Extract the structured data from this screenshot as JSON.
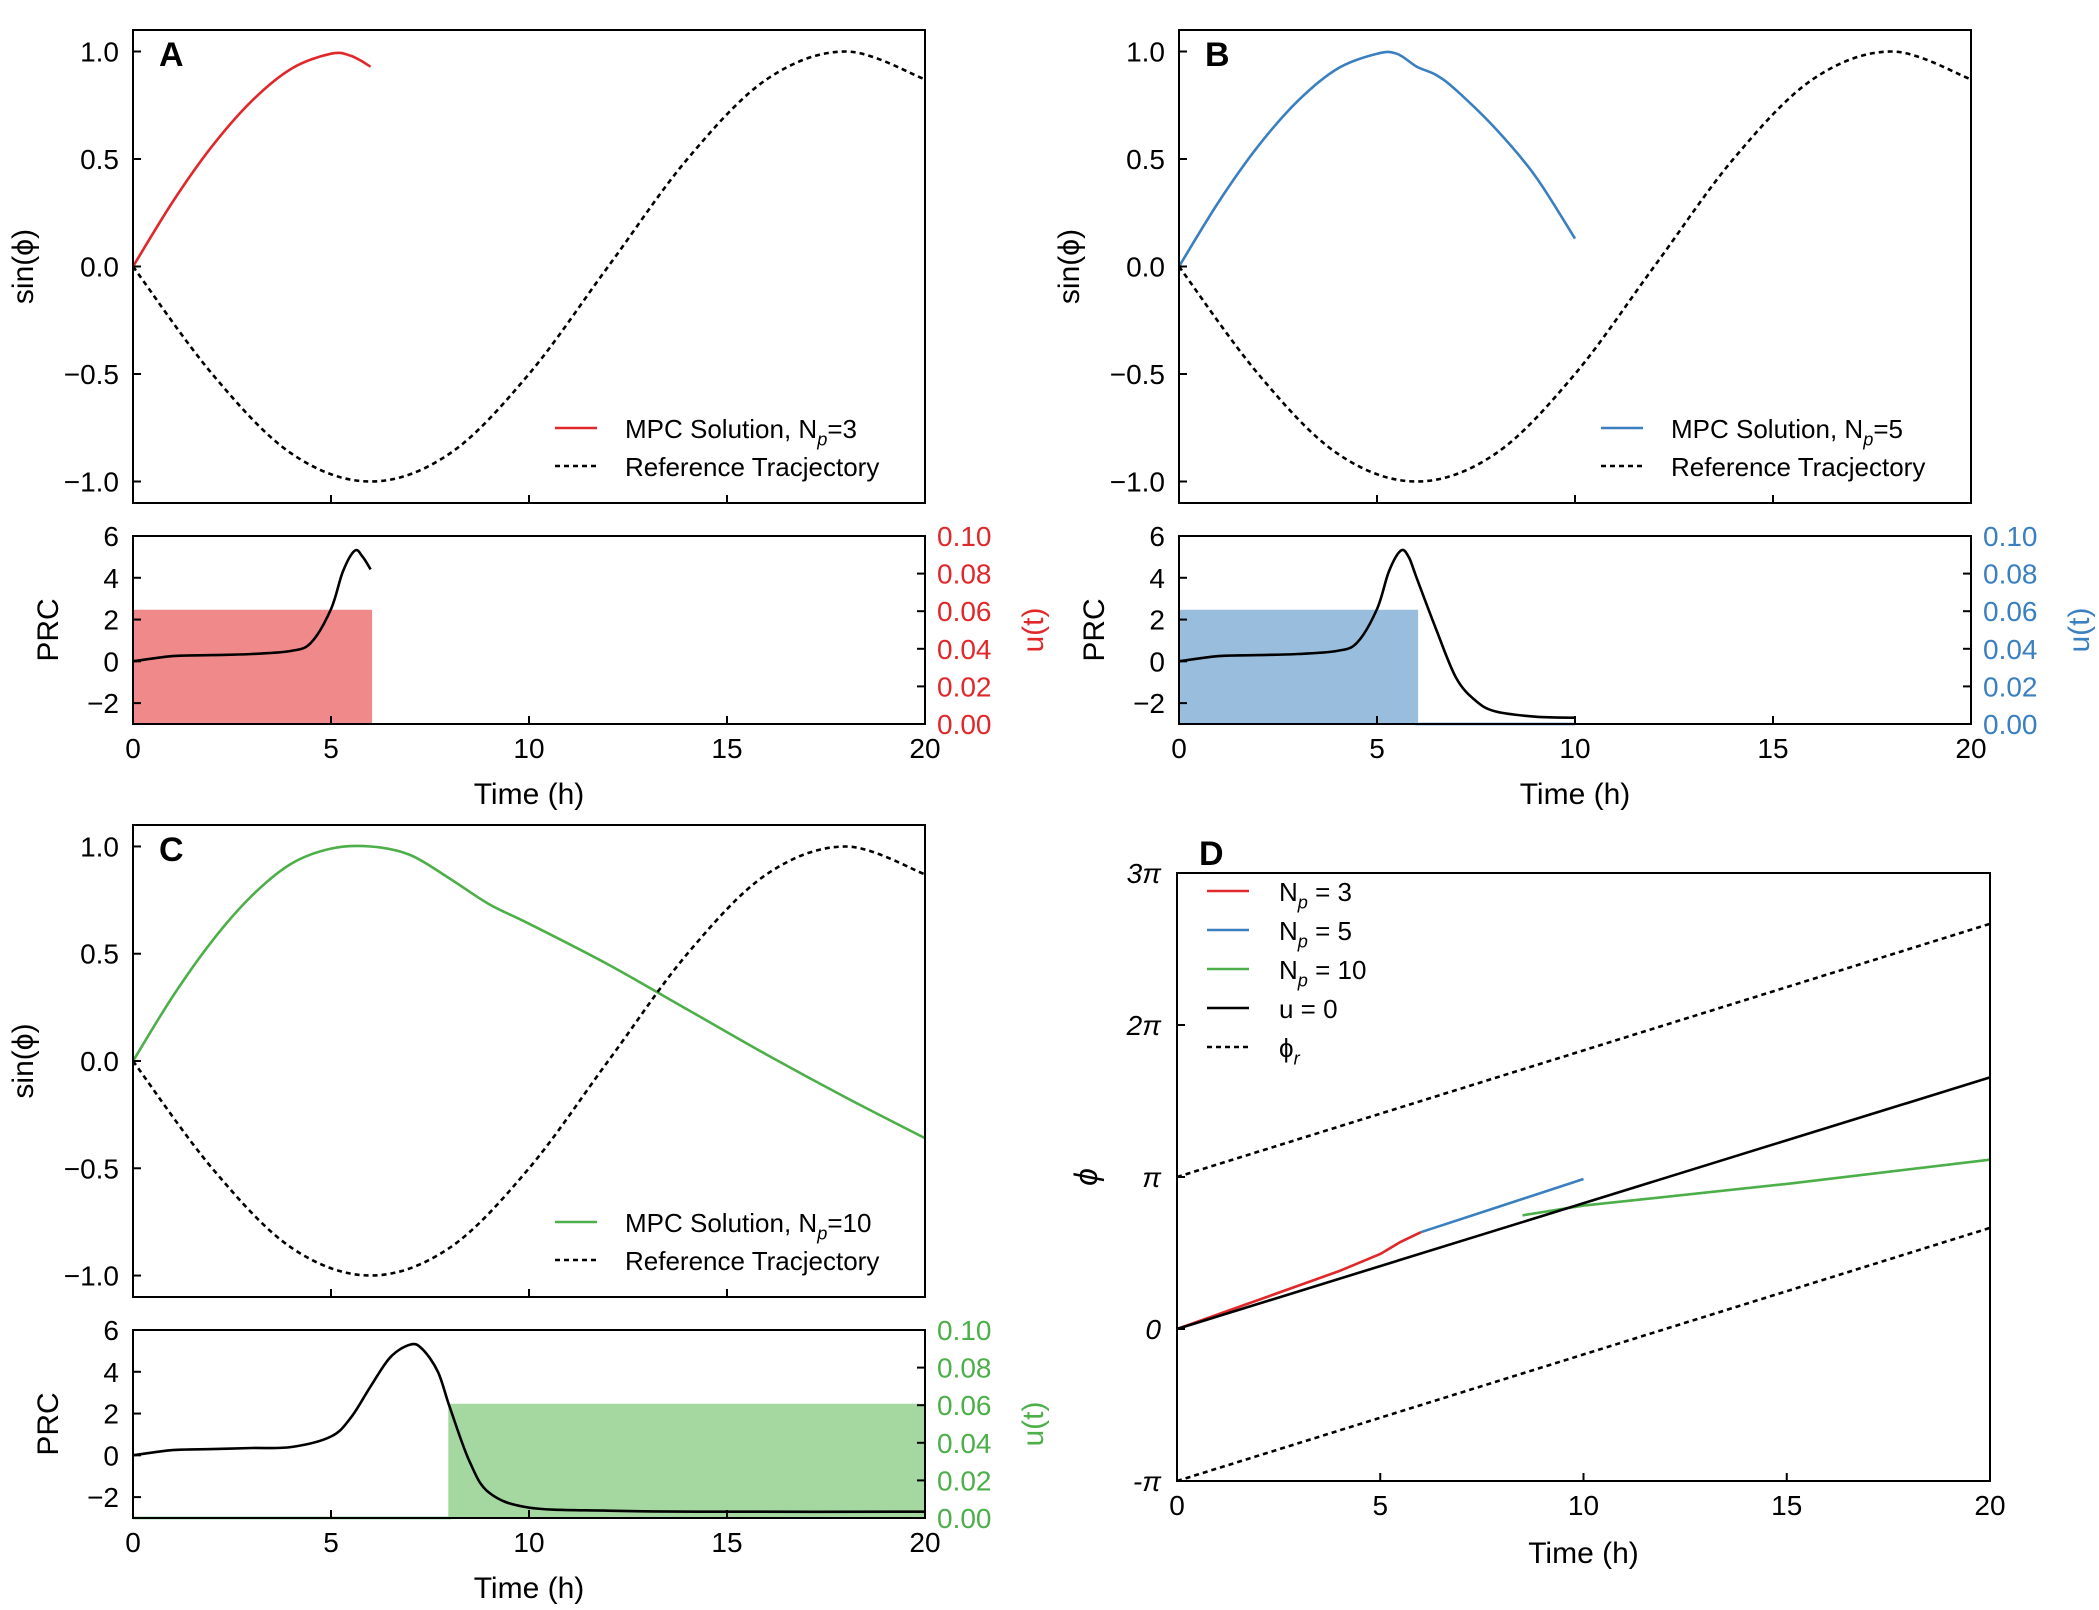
{
  "colors": {
    "red": "#e0282b",
    "blue": "#3a7fbf",
    "green": "#4daf4a",
    "black": "#000000",
    "red_fill": "#f08a8a",
    "blue_fill": "#99bedd",
    "green_fill": "#a5d7a0"
  },
  "chart_data": [
    {
      "panel": "A",
      "type": "line",
      "ylabel": "sin(ϕ)",
      "xlim": [
        0,
        20
      ],
      "ylim": [
        -1.1,
        1.1
      ],
      "xticks": [
        0,
        5,
        10,
        15,
        20
      ],
      "yticks": [
        1.0,
        0.5,
        0.0,
        -0.5,
        -1.0
      ],
      "ytick_labels": [
        "1.0",
        "0.5",
        "0.0",
        "−0.5",
        "−1.0"
      ],
      "legend_position": "lower-right",
      "series": [
        {
          "name": "MPC Solution, N_p=3",
          "color": "red",
          "dash": false,
          "x": [
            0,
            1,
            2,
            3,
            4,
            5,
            5.5,
            6
          ],
          "y": [
            0,
            0.3,
            0.56,
            0.77,
            0.92,
            0.99,
            0.98,
            0.93
          ]
        },
        {
          "name": "Reference Tracjectory",
          "color": "black",
          "dash": true,
          "x": [
            0,
            2,
            4,
            6,
            8,
            10,
            12,
            14,
            16,
            18,
            20
          ],
          "y": [
            0,
            -0.5,
            -0.87,
            -1.0,
            -0.87,
            -0.5,
            0,
            0.5,
            0.87,
            1.0,
            0.87
          ]
        }
      ]
    },
    {
      "panel": "A-lower",
      "type": "line",
      "xlabel": "Time (h)",
      "ylabel": "PRC",
      "ylabel_right": "u(t)",
      "right_color": "red",
      "xlim": [
        0,
        20
      ],
      "ylim": [
        -3,
        6
      ],
      "ylim_right": [
        0,
        0.1
      ],
      "xticks": [
        0,
        5,
        10,
        15,
        20
      ],
      "yticks": [
        6,
        4,
        2,
        0,
        -2
      ],
      "ytick_labels": [
        "6",
        "4",
        "2",
        "0",
        "−2"
      ],
      "yticks_right": [
        "0.10",
        "0.08",
        "0.06",
        "0.04",
        "0.02",
        "0.00"
      ],
      "control": {
        "x": [
          0,
          6,
          6
        ],
        "u": [
          0.06,
          0.06,
          0.0
        ],
        "color": "red"
      },
      "series": [
        {
          "name": "PRC",
          "color": "black",
          "x": [
            0,
            1,
            2,
            3,
            4,
            4.5,
            5,
            5.3,
            5.6,
            5.8,
            6
          ],
          "y": [
            0,
            0.25,
            0.3,
            0.35,
            0.5,
            0.9,
            2.5,
            4.3,
            5.3,
            5.0,
            4.4
          ]
        }
      ]
    },
    {
      "panel": "B",
      "type": "line",
      "ylabel": "sin(ϕ)",
      "xlim": [
        0,
        20
      ],
      "ylim": [
        -1.1,
        1.1
      ],
      "xticks": [
        0,
        5,
        10,
        15,
        20
      ],
      "yticks": [
        1.0,
        0.5,
        0.0,
        -0.5,
        -1.0
      ],
      "ytick_labels": [
        "1.0",
        "0.5",
        "0.0",
        "−0.5",
        "−1.0"
      ],
      "legend_position": "lower-right",
      "series": [
        {
          "name": "MPC Solution, N_p=5",
          "color": "blue",
          "dash": false,
          "x": [
            0,
            1,
            2,
            3,
            4,
            5,
            5.5,
            6,
            6.5,
            7,
            8,
            9,
            10
          ],
          "y": [
            0,
            0.3,
            0.56,
            0.77,
            0.92,
            0.99,
            0.99,
            0.93,
            0.89,
            0.82,
            0.64,
            0.42,
            0.13
          ]
        },
        {
          "name": "Reference Tracjectory",
          "color": "black",
          "dash": true,
          "x": [
            0,
            2,
            4,
            6,
            8,
            10,
            12,
            14,
            16,
            18,
            20
          ],
          "y": [
            0,
            -0.5,
            -0.87,
            -1.0,
            -0.87,
            -0.5,
            0,
            0.5,
            0.87,
            1.0,
            0.87
          ]
        }
      ]
    },
    {
      "panel": "B-lower",
      "type": "line",
      "xlabel": "Time (h)",
      "ylabel": "PRC",
      "ylabel_right": "u(t)",
      "right_color": "blue",
      "xlim": [
        0,
        20
      ],
      "ylim": [
        -3,
        6
      ],
      "ylim_right": [
        0,
        0.1
      ],
      "xticks": [
        0,
        5,
        10,
        15,
        20
      ],
      "yticks": [
        6,
        4,
        2,
        0,
        -2
      ],
      "ytick_labels": [
        "6",
        "4",
        "2",
        "0",
        "−2"
      ],
      "yticks_right": [
        "0.10",
        "0.08",
        "0.06",
        "0.04",
        "0.02",
        "0.00"
      ],
      "control": {
        "x": [
          0,
          6,
          6,
          10
        ],
        "u": [
          0.06,
          0.06,
          0.0,
          0.0
        ],
        "color": "blue"
      },
      "series": [
        {
          "name": "PRC",
          "color": "black",
          "x": [
            0,
            1,
            2,
            3,
            4,
            4.5,
            5,
            5.3,
            5.6,
            5.8,
            6,
            6.5,
            7,
            7.5,
            8,
            9,
            10
          ],
          "y": [
            0,
            0.25,
            0.3,
            0.35,
            0.5,
            0.9,
            2.5,
            4.3,
            5.3,
            5.0,
            4.0,
            1.5,
            -0.8,
            -1.9,
            -2.4,
            -2.65,
            -2.7
          ]
        }
      ]
    },
    {
      "panel": "C",
      "type": "line",
      "ylabel": "sin(ϕ)",
      "xlim": [
        0,
        20
      ],
      "ylim": [
        -1.1,
        1.1
      ],
      "xticks": [
        0,
        5,
        10,
        15,
        20
      ],
      "yticks": [
        1.0,
        0.5,
        0.0,
        -0.5,
        -1.0
      ],
      "ytick_labels": [
        "1.0",
        "0.5",
        "0.0",
        "−0.5",
        "−1.0"
      ],
      "legend_position": "lower-right",
      "series": [
        {
          "name": "MPC Solution, N_p=10",
          "color": "green",
          "dash": false,
          "x": [
            0,
            1,
            2,
            3,
            4,
            5,
            6,
            7,
            8,
            9,
            10,
            12,
            14,
            16,
            18,
            20
          ],
          "y": [
            0,
            0.3,
            0.56,
            0.77,
            0.92,
            0.99,
            1.0,
            0.96,
            0.85,
            0.73,
            0.64,
            0.45,
            0.24,
            0.03,
            -0.17,
            -0.36
          ]
        },
        {
          "name": "Reference Tracjectory",
          "color": "black",
          "dash": true,
          "x": [
            0,
            2,
            4,
            6,
            8,
            10,
            12,
            14,
            16,
            18,
            20
          ],
          "y": [
            0,
            -0.5,
            -0.87,
            -1.0,
            -0.87,
            -0.5,
            0,
            0.5,
            0.87,
            1.0,
            0.87
          ]
        }
      ]
    },
    {
      "panel": "C-lower",
      "type": "line",
      "xlabel": "Time (h)",
      "ylabel": "PRC",
      "ylabel_right": "u(t)",
      "right_color": "green",
      "xlim": [
        0,
        20
      ],
      "ylim": [
        -3,
        6
      ],
      "ylim_right": [
        0,
        0.1
      ],
      "xticks": [
        0,
        5,
        10,
        15,
        20
      ],
      "yticks": [
        6,
        4,
        2,
        0,
        -2
      ],
      "ytick_labels": [
        "6",
        "4",
        "2",
        "0",
        "−2"
      ],
      "yticks_right": [
        "0.10",
        "0.08",
        "0.06",
        "0.04",
        "0.02",
        "0.00"
      ],
      "control": {
        "x": [
          0,
          8,
          8,
          20
        ],
        "u": [
          0.0,
          0.0,
          0.06,
          0.06
        ],
        "color": "green"
      },
      "series": [
        {
          "name": "PRC",
          "color": "black",
          "x": [
            0,
            1,
            2,
            3,
            4,
            5,
            5.5,
            6,
            6.5,
            7,
            7.3,
            7.7,
            8,
            8.5,
            9,
            10,
            12,
            15,
            20
          ],
          "y": [
            0,
            0.25,
            0.3,
            0.35,
            0.4,
            0.9,
            1.8,
            3.3,
            4.7,
            5.3,
            5.1,
            4.0,
            2.3,
            -0.3,
            -1.8,
            -2.5,
            -2.65,
            -2.7,
            -2.7
          ]
        }
      ]
    },
    {
      "panel": "D",
      "type": "line",
      "xlabel": "Time (h)",
      "ylabel": "ϕ",
      "xlim": [
        0,
        20
      ],
      "ylim": [
        -3.1416,
        9.4248
      ],
      "xticks": [
        0,
        5,
        10,
        15,
        20
      ],
      "yticks": [
        9.4248,
        6.2832,
        3.1416,
        0,
        -3.1416
      ],
      "ytick_labels": [
        "3π",
        "2π",
        "π",
        "0",
        "-π"
      ],
      "legend_position": "top-left",
      "series": [
        {
          "name": "N_p = 3",
          "color": "red",
          "dash": false,
          "x": [
            0,
            2,
            4,
            5,
            5.5,
            6
          ],
          "y": [
            0,
            0.6,
            1.2,
            1.55,
            1.8,
            2.0
          ]
        },
        {
          "name": "N_p = 5",
          "color": "blue",
          "dash": false,
          "x": [
            6,
            8,
            10
          ],
          "y": [
            2.0,
            2.55,
            3.1
          ]
        },
        {
          "name": "N_p = 10",
          "color": "green",
          "dash": false,
          "x": [
            8.5,
            10,
            15,
            20
          ],
          "y": [
            2.35,
            2.55,
            3.0,
            3.5
          ]
        },
        {
          "name": "u = 0",
          "color": "black",
          "dash": false,
          "x": [
            0,
            20
          ],
          "y": [
            0,
            5.2
          ]
        },
        {
          "name": "ϕ_r",
          "color": "black",
          "dash": true,
          "x": [
            0,
            20
          ],
          "y": [
            3.1416,
            8.375
          ]
        },
        {
          "name": "",
          "color": "black",
          "dash": true,
          "x": [
            0,
            20
          ],
          "y": [
            -3.1416,
            2.09
          ]
        }
      ]
    }
  ],
  "panel_letters": [
    "A",
    "B",
    "C",
    "D"
  ]
}
